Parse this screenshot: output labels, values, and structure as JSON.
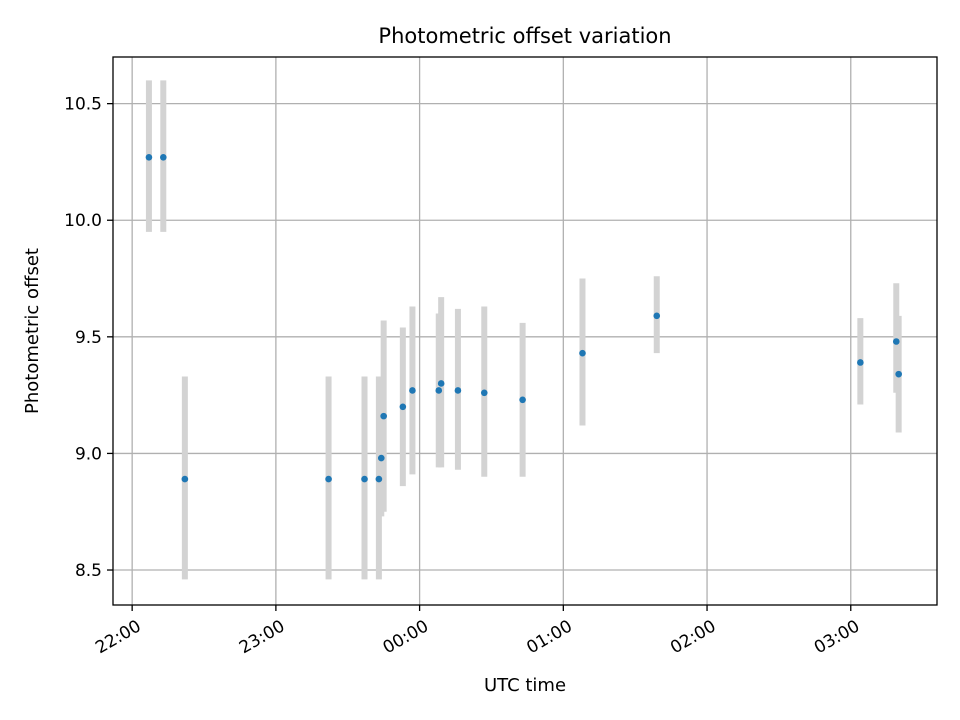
{
  "chart_data": {
    "type": "scatter",
    "title": "Photometric offset variation",
    "xlabel": "UTC time",
    "ylabel": "Photometric offset",
    "xlim": [
      "21:52",
      "03:36"
    ],
    "ylim": [
      8.35,
      10.7
    ],
    "grid": true,
    "x_ticks": [
      "22:00",
      "23:00",
      "00:00",
      "01:00",
      "02:00",
      "03:00"
    ],
    "y_ticks": [
      "8.5",
      "9.0",
      "9.5",
      "10.0",
      "10.5"
    ],
    "colors": {
      "point": "#1f77b4",
      "errorbar": "#d3d3d3"
    },
    "series": [
      {
        "x": [
          "22:07",
          "22:13",
          "22:22",
          "23:22",
          "23:37",
          "23:43",
          "23:44",
          "23:45",
          "23:53",
          "23:57",
          "00:08",
          "00:09",
          "00:16",
          "00:27",
          "00:43",
          "01:08",
          "01:39",
          "03:04",
          "03:19",
          "03:20"
        ],
        "y": [
          10.27,
          10.27,
          8.89,
          8.89,
          8.89,
          8.89,
          8.98,
          9.16,
          9.2,
          9.27,
          9.27,
          9.3,
          9.27,
          9.26,
          9.23,
          9.43,
          9.59,
          9.39,
          9.48,
          9.34
        ],
        "yerr_low": [
          9.95,
          9.95,
          8.46,
          8.46,
          8.46,
          8.46,
          8.73,
          8.75,
          8.86,
          8.91,
          8.94,
          8.94,
          8.93,
          8.9,
          8.9,
          9.12,
          9.43,
          9.21,
          9.26,
          9.09
        ],
        "yerr_high": [
          10.6,
          10.6,
          9.33,
          9.33,
          9.33,
          9.33,
          9.23,
          9.57,
          9.54,
          9.63,
          9.6,
          9.67,
          9.62,
          9.63,
          9.56,
          9.75,
          9.76,
          9.58,
          9.73,
          9.59
        ]
      }
    ]
  }
}
